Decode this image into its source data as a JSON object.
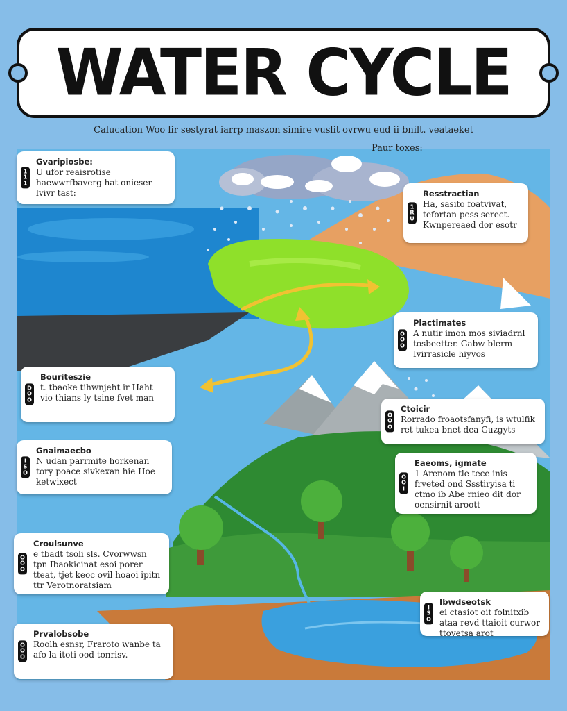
{
  "title": "WATER CYCLE",
  "subtitle": "Calucation Woo lir sestyrat iarrp maszon simire vuslit ovrwu eud ii bnilt. veataeket",
  "name_label": "Paur toxes:",
  "cards": [
    {
      "tab": [
        "1",
        "1",
        "1"
      ],
      "title": "Gvaripiosbe:",
      "text": "U ufor reaisrotise haewwrfbaverg hat onieser lvivr tast:"
    },
    {
      "tab": [
        "1",
        "R",
        "U"
      ],
      "title": "Resstractian",
      "text": "Ha, sasito foatvivat, tefortan pess serect. Kwnpereaed dor esotr"
    },
    {
      "tab": [
        "O",
        "O",
        "O"
      ],
      "title": "Plactimates",
      "text": "A nutir imon mos siviadrnl tosbeetter. Gabw blerm Ivirrasicle hiyvos"
    },
    {
      "tab": [
        "D",
        "O",
        "O"
      ],
      "title": "Bouriteszie",
      "text": "t. tbaoke tihwnjeht ir Haht vio thians ly tsine fvet man"
    },
    {
      "tab": [
        "O",
        "O",
        "O"
      ],
      "title": "Ctoicir",
      "text": "Rorrado froaotsfanyfi, is wtulfik ret tukea bnet dea Guzgyts"
    },
    {
      "tab": [
        "I",
        "S",
        "O"
      ],
      "title": "Gnaimaecbo",
      "text": "N udan parrmite horkenan tory poace sivkexan hie Hoe ketwixect"
    },
    {
      "tab": [
        "O",
        "O",
        "I"
      ],
      "title": "Eaeoms, igmate",
      "text": "1 Arenom tle tece inis frveted ond Ssstiryisa ti ctmo ib Abe rnieo dit dor oensirnit aroott"
    },
    {
      "tab": [
        "O",
        "O",
        "O"
      ],
      "title": "Croulsunve",
      "text": "e tbadt tsoli sls. Cvorwwsn tpn Ibaokicinat esoi porer tteat, tjet keoc ovil hoaoi ipitn ttr Verotnoratsiam"
    },
    {
      "tab": [
        "I",
        "S",
        "O"
      ],
      "title": "Ibwdseotsk",
      "text": "ei ctasiot oit folnitxib ataa revd ttaioit curwor ttovetsa arot"
    },
    {
      "tab": [
        "O",
        "O",
        "O"
      ],
      "title": "Prvalobsobe",
      "text": "Roolh esnsr, Fraroto wanbe ta afo la itoti ood tonrisv."
    }
  ]
}
